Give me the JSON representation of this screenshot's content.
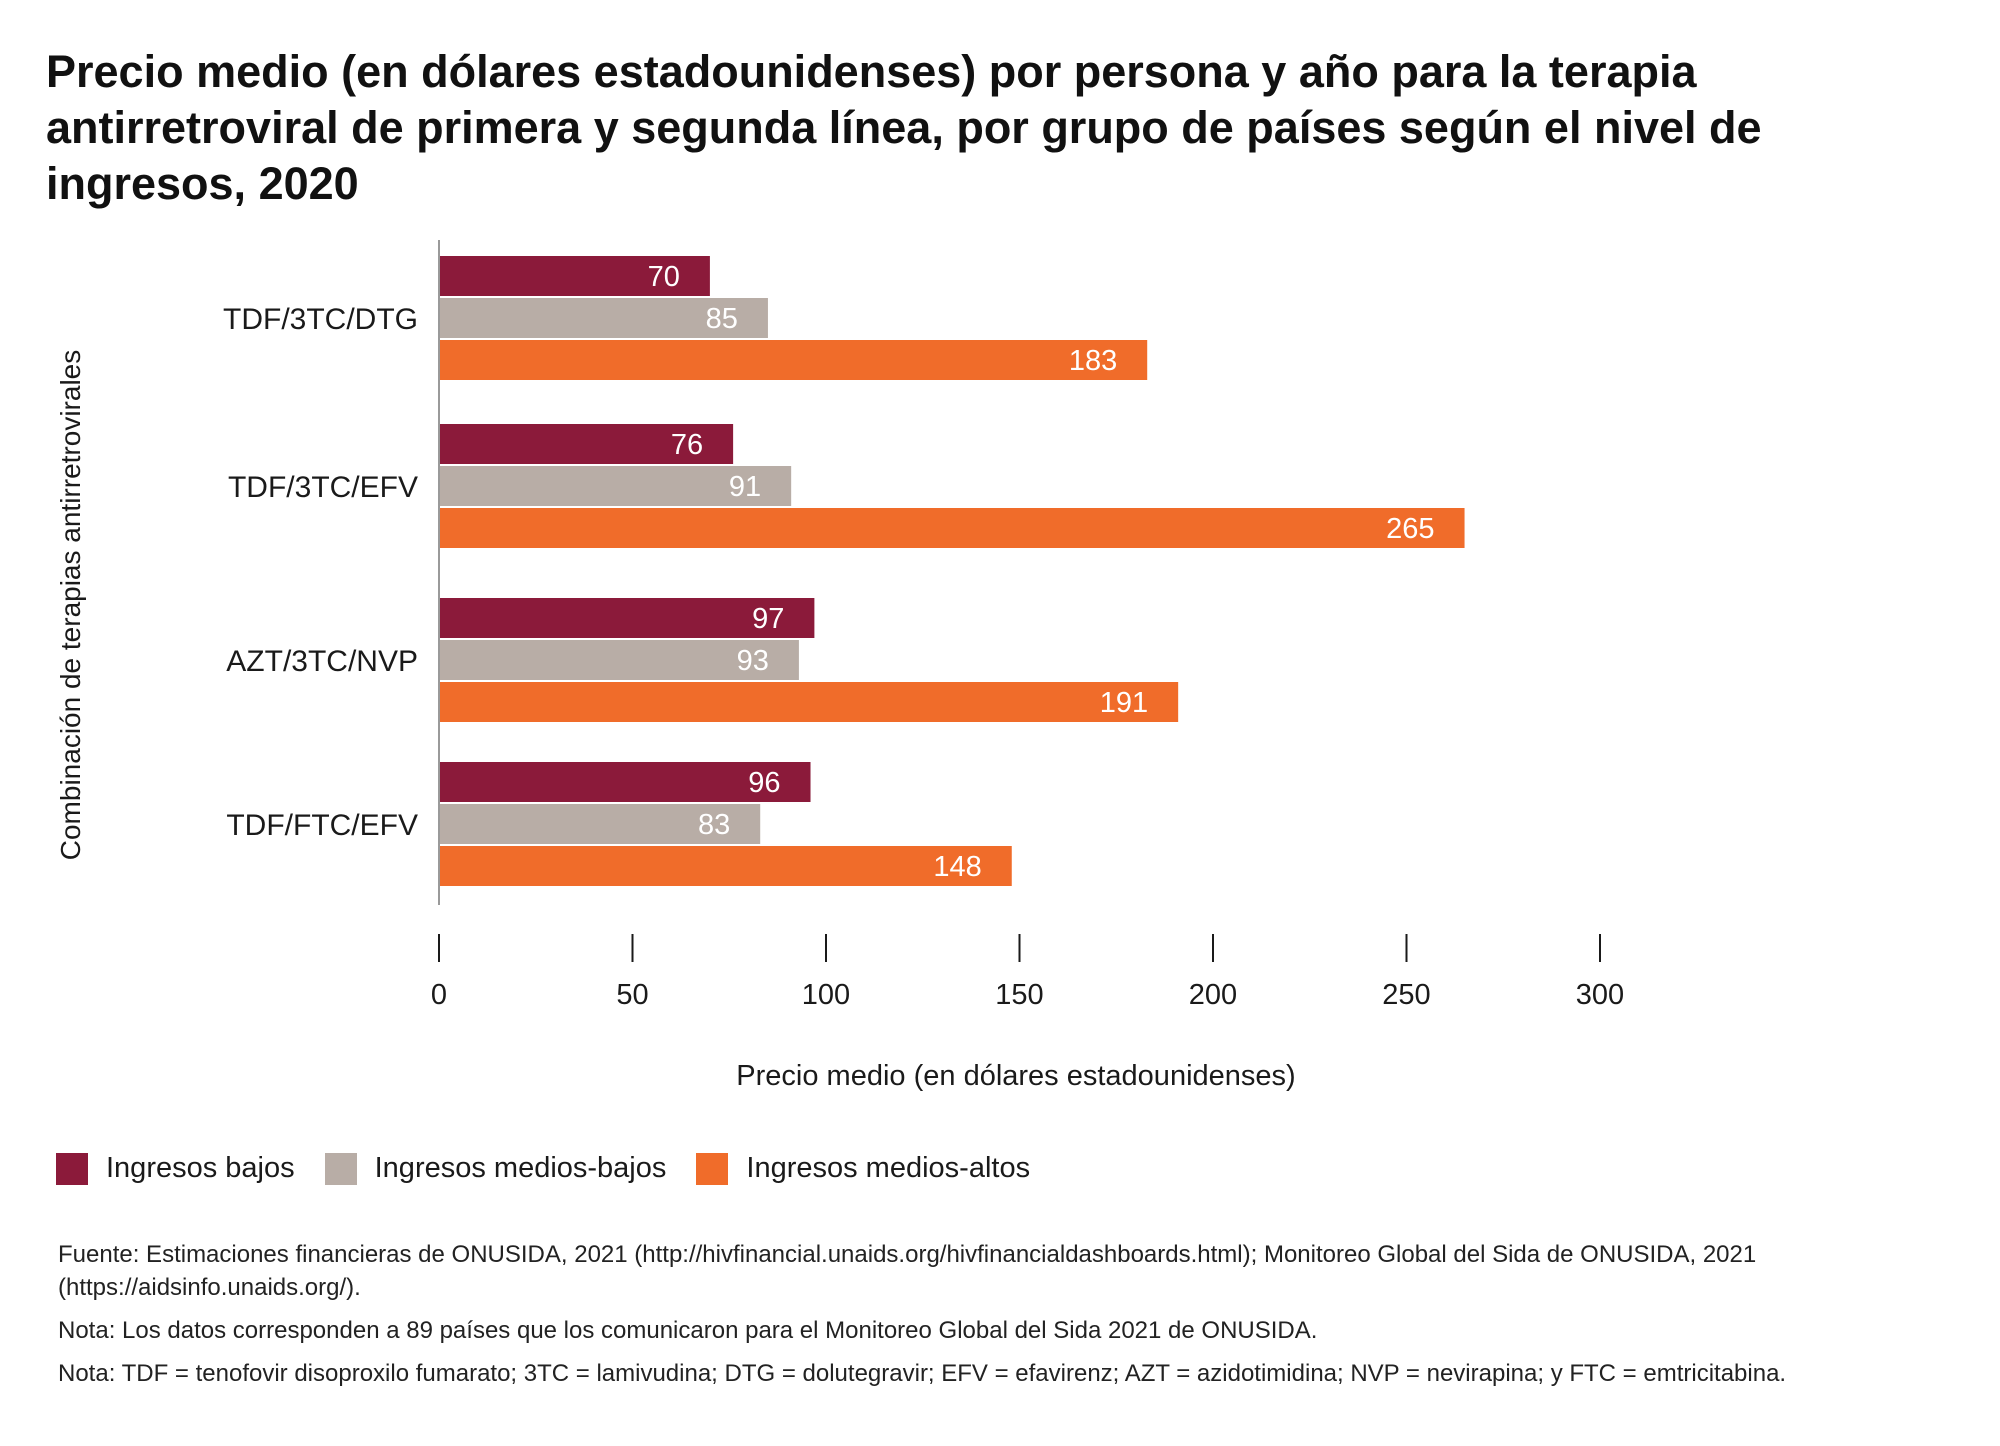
{
  "title": "Precio medio (en dólares estadounidenses) por persona y año para la terapia antirretroviral de primera y segunda línea, por grupo de países según el nivel de ingresos, 2020",
  "chart_data": {
    "type": "bar",
    "orientation": "horizontal",
    "title": "Precio medio (en dólares estadounidenses) por persona y año para la terapia antirretroviral de primera y segunda línea, por grupo de países según el nivel de ingresos, 2020",
    "xlabel": "Precio medio (en dólares estadounidenses)",
    "ylabel": "Combinación de terapias antirretrovirales",
    "xlim": [
      0,
      300
    ],
    "xticks": [
      "0",
      "50",
      "100",
      "150",
      "200",
      "250",
      "300"
    ],
    "grid": false,
    "legend_position": "bottom-left",
    "categories": [
      "TDF/3TC/DTG",
      "TDF/3TC/EFV",
      "AZT/3TC/NVP",
      "TDF/FTC/EFV"
    ],
    "series": [
      {
        "name": "Ingresos bajos",
        "color": "#8b1a3a",
        "values": [
          70,
          76,
          97,
          96
        ]
      },
      {
        "name": "Ingresos medios-bajos",
        "color": "#b8ada6",
        "values": [
          85,
          91,
          93,
          83
        ]
      },
      {
        "name": "Ingresos medios-altos",
        "color": "#f06c2a",
        "values": [
          183,
          265,
          191,
          148
        ]
      }
    ]
  },
  "notes": {
    "source": "Fuente: Estimaciones financieras de ONUSIDA, 2021 (http://hivfinancial.unaids.org/hivfinancialdashboards.html); Monitoreo Global del Sida de ONUSIDA, 2021 (https://aidsinfo.unaids.org/).",
    "note1": "Nota: Los datos corresponden a 89 países que los comunicaron para el Monitoreo Global del Sida 2021 de ONUSIDA.",
    "note2": "Nota: TDF = tenofovir disoproxilo fumarato; 3TC = lamivudina; DTG = dolutegravir; EFV = efavirenz; AZT = azidotimidina; NVP = nevirapina;  y FTC = emtricitabina."
  }
}
